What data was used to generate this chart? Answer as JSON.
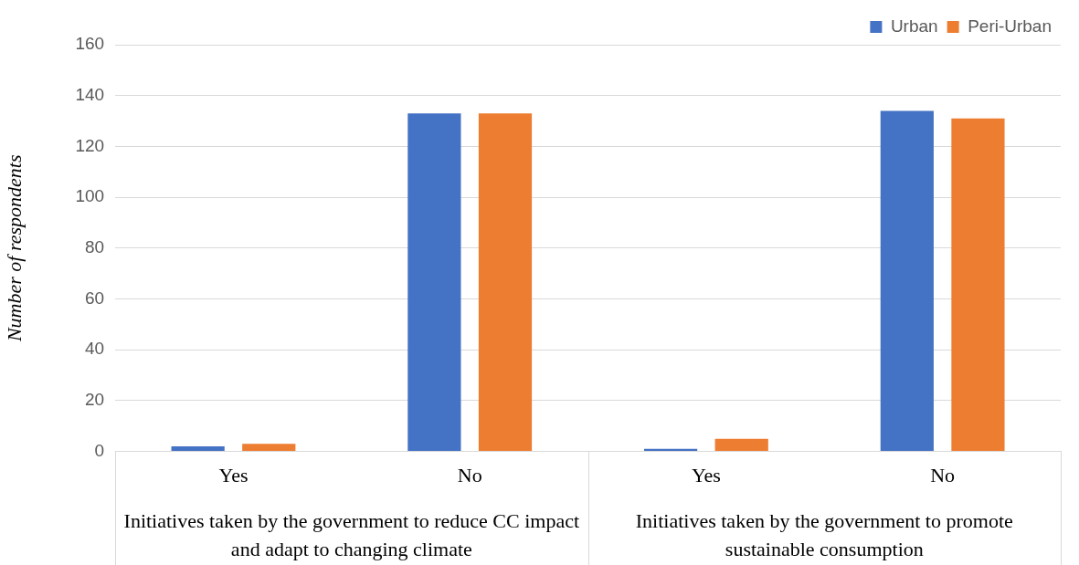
{
  "chart_data": {
    "type": "bar",
    "ylabel": "Number of respondents",
    "categories": [
      "Yes",
      "No",
      "Yes",
      "No"
    ],
    "series": [
      {
        "name": "Urban",
        "color": "#4472c4",
        "values": [
          2,
          133,
          1,
          134
        ]
      },
      {
        "name": "Peri-Urban",
        "color": "#ed7d31",
        "values": [
          3,
          133,
          5,
          131
        ]
      }
    ],
    "annotations": [
      "Initiatives taken by the government to reduce CC impact and adapt to changing climate",
      "Initiatives taken by the government to promote sustainable consumption"
    ],
    "ylim": [
      0,
      160
    ],
    "yticks": [
      0,
      20,
      40,
      60,
      80,
      100,
      120,
      140,
      160
    ],
    "grid": "y",
    "legend": "top"
  }
}
